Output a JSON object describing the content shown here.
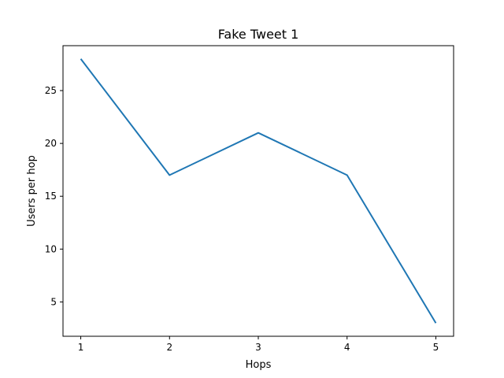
{
  "chart_data": {
    "type": "line",
    "title": "Fake Tweet 1",
    "xlabel": "Hops",
    "ylabel": "Users per hop",
    "x": [
      1,
      2,
      3,
      4,
      5
    ],
    "series": [
      {
        "values": [
          28,
          17,
          21,
          17,
          3
        ],
        "color": "#1f77b4"
      }
    ],
    "xticks": [
      1,
      2,
      3,
      4,
      5
    ],
    "yticks": [
      5,
      10,
      15,
      20,
      25
    ],
    "xlim": [
      0.8,
      5.2
    ],
    "ylim": [
      1.75,
      29.25
    ],
    "grid": false,
    "legend": false
  }
}
